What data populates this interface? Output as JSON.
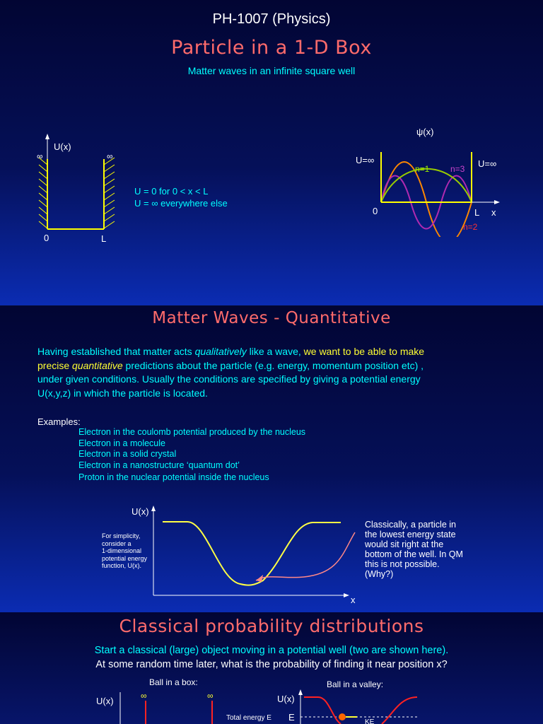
{
  "slide1": {
    "course": "PH-1007 (Physics)",
    "title": "Particle in a 1-D Box",
    "subtitle": "Matter waves in an infinite square well",
    "left_diagram": {
      "ylabel": "U(x)",
      "inf_left": "∞",
      "inf_right": "∞",
      "label_0": "0",
      "label_L": "L"
    },
    "conditions": [
      "U = 0  for 0 < x < L",
      "U = ∞  everywhere else"
    ],
    "right_diagram": {
      "psi_label": "ψ(x)",
      "u_left": "U=∞",
      "u_right": "U=∞",
      "n1": "n=1",
      "n2": "n=2",
      "n3": "n=3",
      "label_0": "0",
      "label_L": "L",
      "label_x": "x"
    }
  },
  "slide2": {
    "title": "Matter Waves - Quantitative",
    "para": {
      "p1": "Having established that matter acts ",
      "p2": "qualitatively",
      "p3": " like a wave, ",
      "p4": "we want to  be able to make",
      "p5": "precise ",
      "p6": "quantitative",
      "p7": " predictions about the particle (e.g. energy, momentum position etc) ,",
      "p8": "under given conditions.  Usually the conditions are specified by giving a potential energy",
      "p9": "U(x,y,z) in which the particle is located."
    },
    "examples_heading": "Examples:",
    "examples": [
      "Electron in the coulomb potential produced by the nucleus",
      "Electron in a molecule",
      "Electron in a solid crystal",
      "Electron in a nanostructure ‘quantum dot’",
      "Proton in the nuclear potential inside the nucleus"
    ],
    "graph": {
      "ylabel": "U(x)",
      "xlabel": "x",
      "side_note": [
        "For simplicity,",
        "consider a",
        "1-dimensional",
        "potential energy",
        "function, U(x)."
      ],
      "callout": [
        "Classically, a particle in",
        "the lowest energy state",
        "would sit right at the",
        "bottom of the well. In QM",
        "this is not possible.",
        "(Why?)"
      ]
    }
  },
  "slide3": {
    "title": "Classical probability distributions",
    "line1": "Start a classical (large) object moving in a potential well (two are shown here).",
    "line2": "At some random time later, what is the probability of finding it near position x?",
    "ball_box": "Ball in a box:",
    "ball_valley": "Ball in a valley:",
    "ux_left": "U(x)",
    "ux_right": "U(x)",
    "inf1": "∞",
    "inf2": "∞",
    "total_energy": "Total energy E",
    "e_label": "E",
    "ke_label": "KE"
  }
}
